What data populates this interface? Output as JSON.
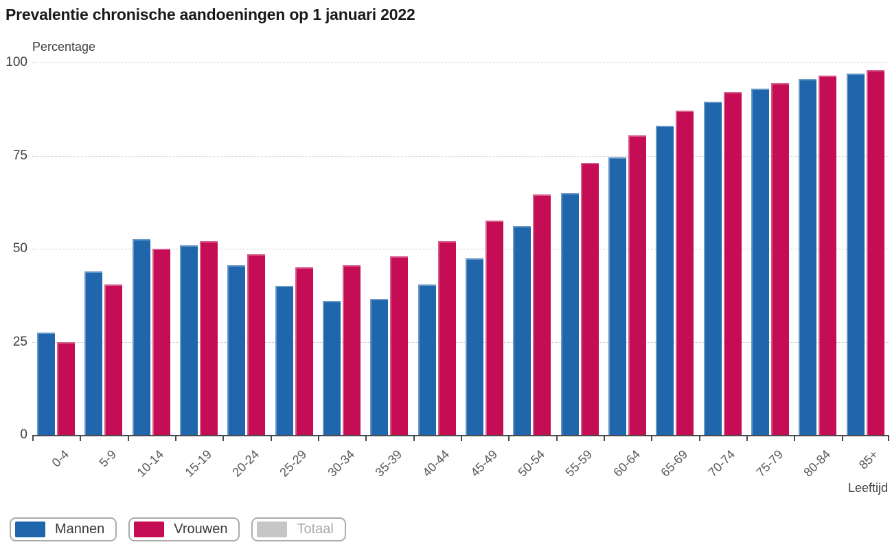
{
  "title": "Prevalentie chronische aandoeningen op 1 januari 2022",
  "chart_data": {
    "type": "bar",
    "title": "Prevalentie chronische aandoeningen op 1 januari 2022",
    "ylabel": "Percentage",
    "xlabel": "Leeftijd",
    "ylim": [
      0,
      100
    ],
    "yticks": [
      0,
      25,
      50,
      75,
      100
    ],
    "grid": "horizontal-dotted",
    "legend_position": "bottom-left",
    "categories": [
      "0-4",
      "5-9",
      "10-14",
      "15-19",
      "20-24",
      "25-29",
      "30-34",
      "35-39",
      "40-44",
      "45-49",
      "50-54",
      "55-59",
      "60-64",
      "65-69",
      "70-74",
      "75-79",
      "80-84",
      "85+"
    ],
    "series": [
      {
        "name": "Mannen",
        "color": "#2066ac",
        "values": [
          27.5,
          44,
          52.5,
          51,
          45.5,
          40,
          36,
          36.5,
          40.5,
          47.5,
          56,
          65,
          74.5,
          83,
          89.5,
          93,
          95.5,
          97
        ]
      },
      {
        "name": "Vrouwen",
        "color": "#c40d55",
        "values": [
          25,
          40.5,
          50,
          52,
          48.5,
          45,
          45.5,
          48,
          52,
          57.5,
          64.5,
          73,
          80.5,
          87,
          92,
          94.5,
          96.5,
          98
        ]
      }
    ],
    "legend": [
      {
        "label": "Mannen",
        "color": "#2066ac",
        "enabled": true
      },
      {
        "label": "Vrouwen",
        "color": "#c40d55",
        "enabled": true
      },
      {
        "label": "Totaal",
        "color": "#c6c6c6",
        "enabled": false
      }
    ]
  },
  "colors": {
    "axis": "#4a4a4a",
    "gridline": "#c3c3c3",
    "tick_text": "#585858",
    "title_text": "#1a1a1a"
  }
}
